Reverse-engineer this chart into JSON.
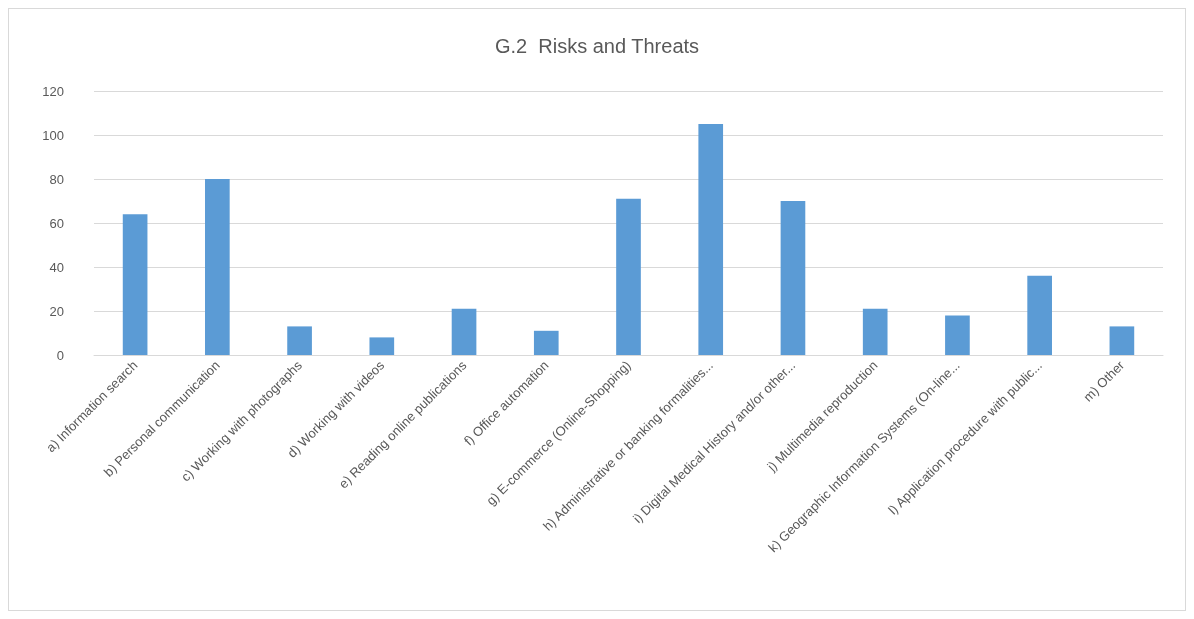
{
  "chart_data": {
    "type": "bar",
    "title": "G.2  Risks and Threats",
    "categories": [
      "a) Information search",
      "b) Personal communication",
      "c) Working with photographs",
      "d) Working with videos",
      "e) Reading online publications",
      "f) Office automation",
      "g) E-commerce (Online-Shopping)",
      "h) Administrative or banking formalities...",
      "i) Digital Medical History and/or other...",
      "j) Multimedia reproduction",
      "k) Geographic Information Systems (On-line...",
      "l) Application procedure with public...",
      "m) Other"
    ],
    "values": [
      64,
      80,
      13,
      8,
      21,
      11,
      71,
      105,
      70,
      21,
      18,
      36,
      13
    ],
    "color": "#5b9bd5",
    "ylim": [
      0,
      120
    ],
    "yticks": [
      0,
      20,
      40,
      60,
      80,
      100,
      120
    ],
    "grid": "y"
  }
}
